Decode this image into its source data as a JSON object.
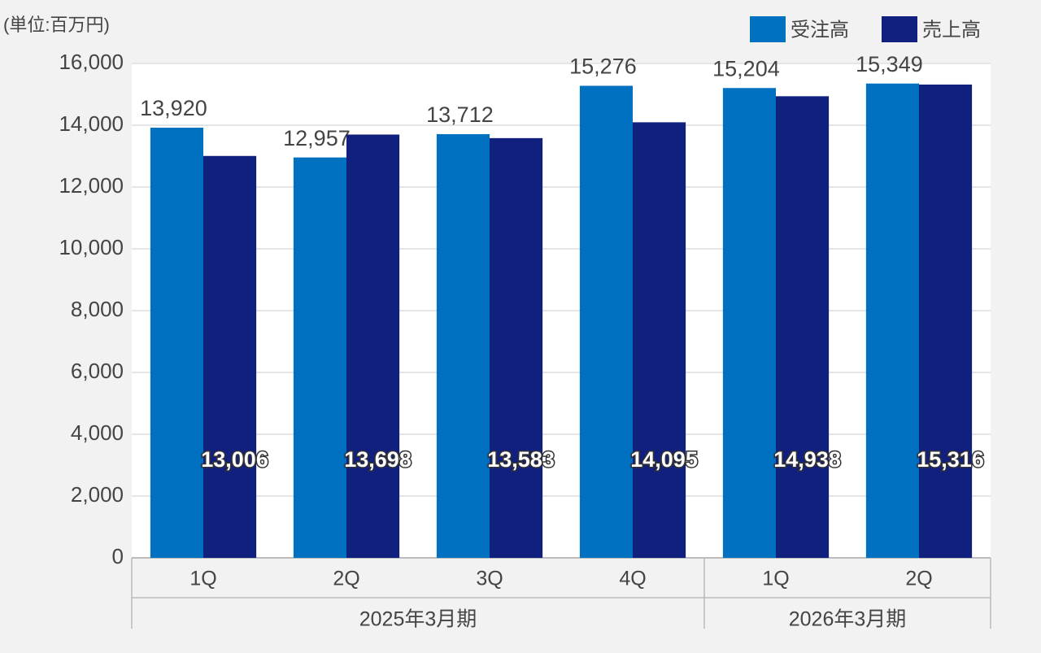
{
  "chart_data": {
    "type": "bar",
    "unit": "(単位:百万円)",
    "category_groups": [
      {
        "label": "2025年3月期",
        "categories": [
          "1Q",
          "2Q",
          "3Q",
          "4Q"
        ]
      },
      {
        "label": "2026年3月期",
        "categories": [
          "1Q",
          "2Q"
        ]
      }
    ],
    "series": [
      {
        "name": "受注高",
        "color": "#0070c0",
        "values": [
          13920,
          12957,
          13712,
          15276,
          15204,
          15349
        ],
        "value_labels": [
          "13,920",
          "12,957",
          "13,712",
          "15,276",
          "15,204",
          "15,349"
        ]
      },
      {
        "name": "売上高",
        "color": "#111f7e",
        "values": [
          13006,
          13698,
          13583,
          14095,
          14938,
          15316
        ],
        "value_labels": [
          "13,006",
          "13,698",
          "13,583",
          "14,095",
          "14,938",
          "15,316"
        ]
      }
    ],
    "ylim": [
      0,
      16000
    ],
    "yticks": [
      0,
      {
        "value": 2000,
        "label": "2,000"
      },
      {
        "value": 4000,
        "label": "4,000"
      },
      {
        "value": 6000,
        "label": "6,000"
      },
      {
        "value": 8000,
        "label": "8,000"
      },
      {
        "value": 10000,
        "label": "10,000"
      },
      {
        "value": 12000,
        "label": "12,000"
      },
      {
        "value": 14000,
        "label": "14,000"
      },
      {
        "value": 16000,
        "label": "16,000"
      }
    ],
    "grid": true,
    "legend": "top-right"
  }
}
